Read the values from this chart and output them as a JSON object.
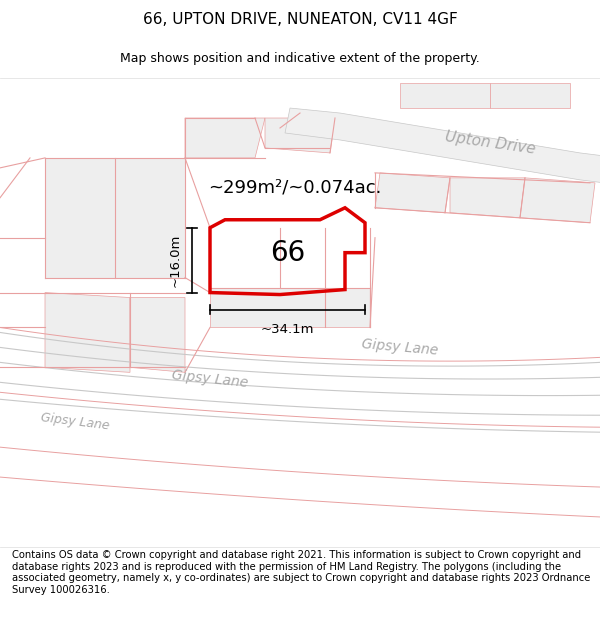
{
  "title": "66, UPTON DRIVE, NUNEATON, CV11 4GF",
  "subtitle": "Map shows position and indicative extent of the property.",
  "footer": "Contains OS data © Crown copyright and database right 2021. This information is subject to Crown copyright and database rights 2023 and is reproduced with the permission of HM Land Registry. The polygons (including the associated geometry, namely x, y co-ordinates) are subject to Crown copyright and database rights 2023 Ordnance Survey 100026316.",
  "area_label": "~299m²/~0.074ac.",
  "property_number": "66",
  "dim_width": "~34.1m",
  "dim_height": "~16.0m",
  "road_label_upton": "Upton Drive",
  "road_label_gipsy1": "Gipsy Lane",
  "road_label_gipsy2": "Gipsy Lane",
  "road_label_gipsy3": "Gipsy Lane",
  "bg_color": "#ffffff",
  "plot_fill": "#eeeeee",
  "road_fill": "#f7f7f7",
  "boundary_color": "#dd0000",
  "line_color": "#e8a0a0",
  "gray_line_color": "#c8c8c8",
  "road_text_color": "#aaaaaa",
  "text_color": "#000000",
  "title_fontsize": 11,
  "subtitle_fontsize": 9,
  "footer_fontsize": 7.2
}
